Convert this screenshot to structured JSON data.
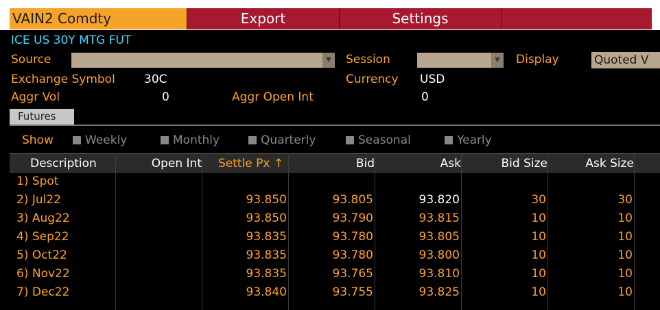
{
  "topbar": {
    "ticker": "VAIN2 Comdty",
    "export_label": "Export",
    "settings_label": "Settings"
  },
  "security_name": "ICE US 30Y MTG FUT",
  "fields": {
    "source_label": "Source",
    "session_label": "Session",
    "display_label": "Display",
    "display_value": "Quoted V",
    "exchange_symbol_label": "Exchange Symbol",
    "exchange_symbol_value": "30C",
    "currency_label": "Currency",
    "currency_value": "USD",
    "aggr_vol_label": "Aggr Vol",
    "aggr_vol_value": "0",
    "aggr_open_int_label": "Aggr Open Int",
    "aggr_open_int_value": "0"
  },
  "tabs": {
    "futures": "Futures"
  },
  "filters": {
    "show_label": "Show",
    "options": [
      "Weekly",
      "Monthly",
      "Quarterly",
      "Seasonal",
      "Yearly"
    ]
  },
  "table": {
    "columns": [
      "Description",
      "Open Int",
      "Settle Px ↑",
      "Bid",
      "Ask",
      "Bid Size",
      "Ask Size"
    ],
    "rows": [
      {
        "desc": "1) Spot",
        "open_int": "",
        "settle": "",
        "bid": "",
        "ask": "",
        "bid_size": "",
        "ask_size": ""
      },
      {
        "desc": "2) Jul22",
        "open_int": "",
        "settle": "93.850",
        "bid": "93.805",
        "ask": "93.820",
        "bid_size": "30",
        "ask_size": "30"
      },
      {
        "desc": "3) Aug22",
        "open_int": "",
        "settle": "93.850",
        "bid": "93.790",
        "ask": "93.815",
        "bid_size": "10",
        "ask_size": "10"
      },
      {
        "desc": "4) Sep22",
        "open_int": "",
        "settle": "93.835",
        "bid": "93.780",
        "ask": "93.805",
        "bid_size": "10",
        "ask_size": "10"
      },
      {
        "desc": "5) Oct22",
        "open_int": "",
        "settle": "93.835",
        "bid": "93.780",
        "ask": "93.800",
        "bid_size": "10",
        "ask_size": "10"
      },
      {
        "desc": "6) Nov22",
        "open_int": "",
        "settle": "93.835",
        "bid": "93.765",
        "ask": "93.810",
        "bid_size": "10",
        "ask_size": "10"
      },
      {
        "desc": "7) Dec22",
        "open_int": "",
        "settle": "93.840",
        "bid": "93.755",
        "ask": "93.825",
        "bid_size": "10",
        "ask_size": "10"
      }
    ]
  },
  "colors": {
    "accent_orange": "#ffa028",
    "ticker_bg": "#f5a32b",
    "button_red": "#a6192e",
    "security_cyan": "#3fd8ff"
  }
}
